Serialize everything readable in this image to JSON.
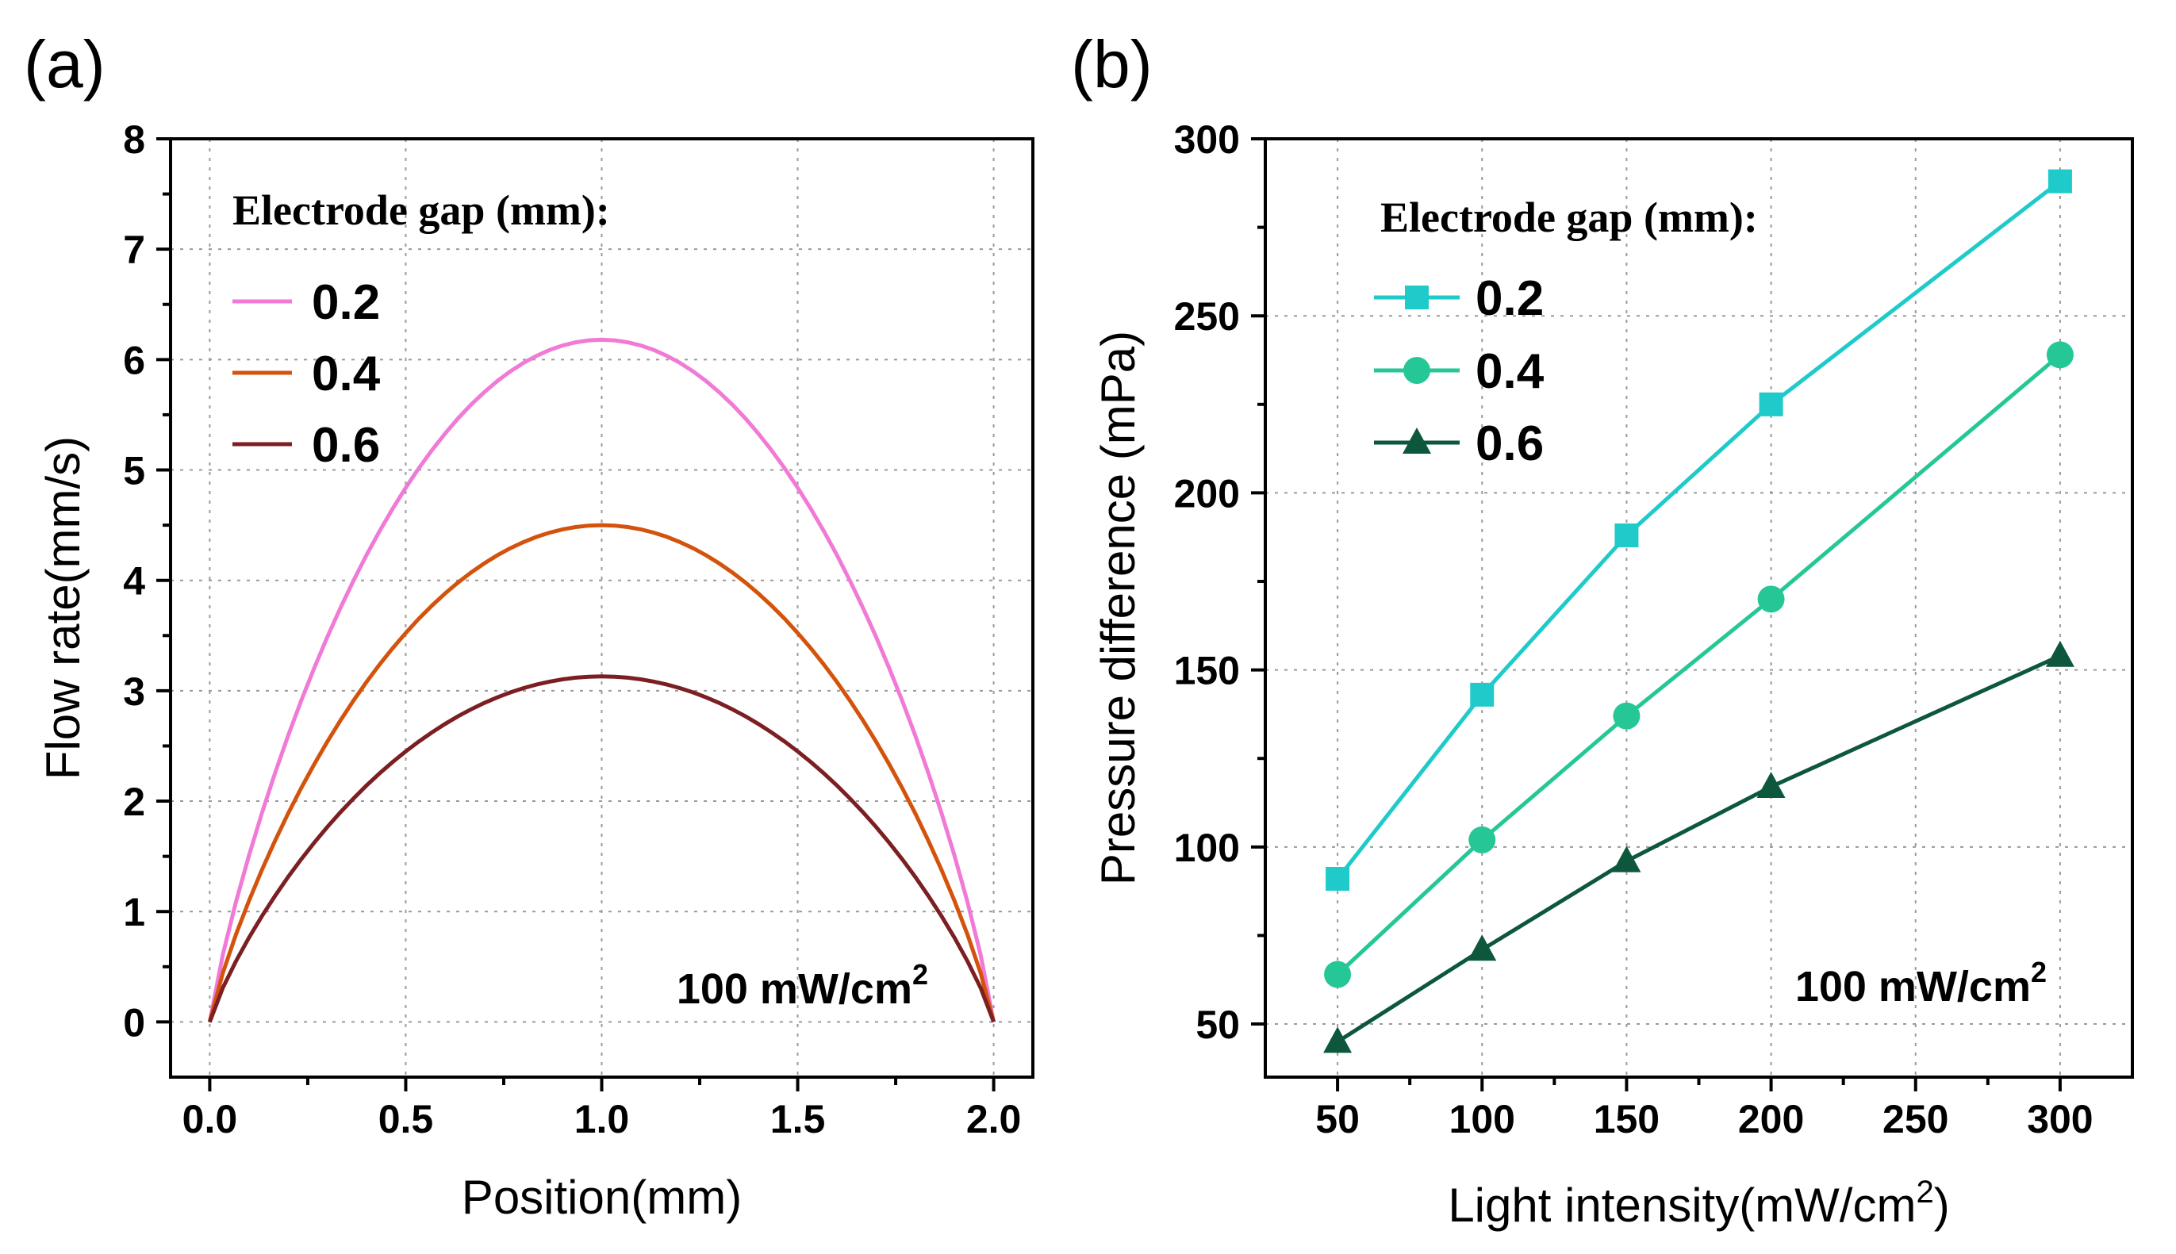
{
  "chart_data": [
    {
      "type": "line",
      "panel_label": "(a)",
      "xlabel": "Position(mm)",
      "ylabel": "Flow rate(mm/s)",
      "xlim": [
        -0.1,
        2.1
      ],
      "ylim": [
        -0.5,
        8
      ],
      "xticks": [
        0.0,
        0.5,
        1.0,
        1.5,
        2.0
      ],
      "xtick_labels": [
        "0.0",
        "0.5",
        "1.0",
        "1.5",
        "2.0"
      ],
      "yticks": [
        0,
        1,
        2,
        3,
        4,
        5,
        6,
        7,
        8
      ],
      "ytick_labels": [
        "0",
        "1",
        "2",
        "3",
        "4",
        "5",
        "6",
        "7",
        "8"
      ],
      "grid": true,
      "legend_title": "Electrode gap (mm):",
      "legend_position": "top-left",
      "annotation": {
        "text": "100 mW/cm",
        "superscript": "2",
        "position": "bottom-right"
      },
      "series": [
        {
          "name": "0.2",
          "color": "#f07ad6",
          "peak": 6.18
        },
        {
          "name": "0.4",
          "color": "#d4530c",
          "peak": 4.5
        },
        {
          "name": "0.6",
          "color": "#7b1f22",
          "peak": 3.13
        }
      ]
    },
    {
      "type": "line",
      "panel_label": "(b)",
      "xlabel": "Light intensity(mW/cm",
      "xlabel_superscript": "2",
      "xlabel_suffix": ")",
      "ylabel": "Pressure difference (mPa)",
      "xlim": [
        25,
        325
      ],
      "ylim": [
        35,
        300
      ],
      "xticks": [
        50,
        100,
        150,
        200,
        250,
        300
      ],
      "xtick_labels": [
        "50",
        "100",
        "150",
        "200",
        "250",
        "300"
      ],
      "yticks": [
        50,
        100,
        150,
        200,
        250,
        300
      ],
      "ytick_labels": [
        "50",
        "100",
        "150",
        "200",
        "250",
        "300"
      ],
      "grid": true,
      "legend_title": "Electrode gap (mm):",
      "legend_position": "top-left",
      "annotation": {
        "text": "100 mW/cm",
        "superscript": "2",
        "position": "bottom-right"
      },
      "x": [
        50,
        100,
        150,
        200,
        300
      ],
      "series": [
        {
          "name": "0.2",
          "color": "#1ecbca",
          "marker": "square",
          "values": [
            91,
            143,
            188,
            225,
            288
          ]
        },
        {
          "name": "0.4",
          "color": "#25c796",
          "marker": "circle",
          "values": [
            64,
            102,
            137,
            170,
            239
          ]
        },
        {
          "name": "0.6",
          "color": "#0d573c",
          "marker": "triangle",
          "values": [
            45,
            71,
            96,
            117,
            154
          ]
        }
      ]
    }
  ]
}
